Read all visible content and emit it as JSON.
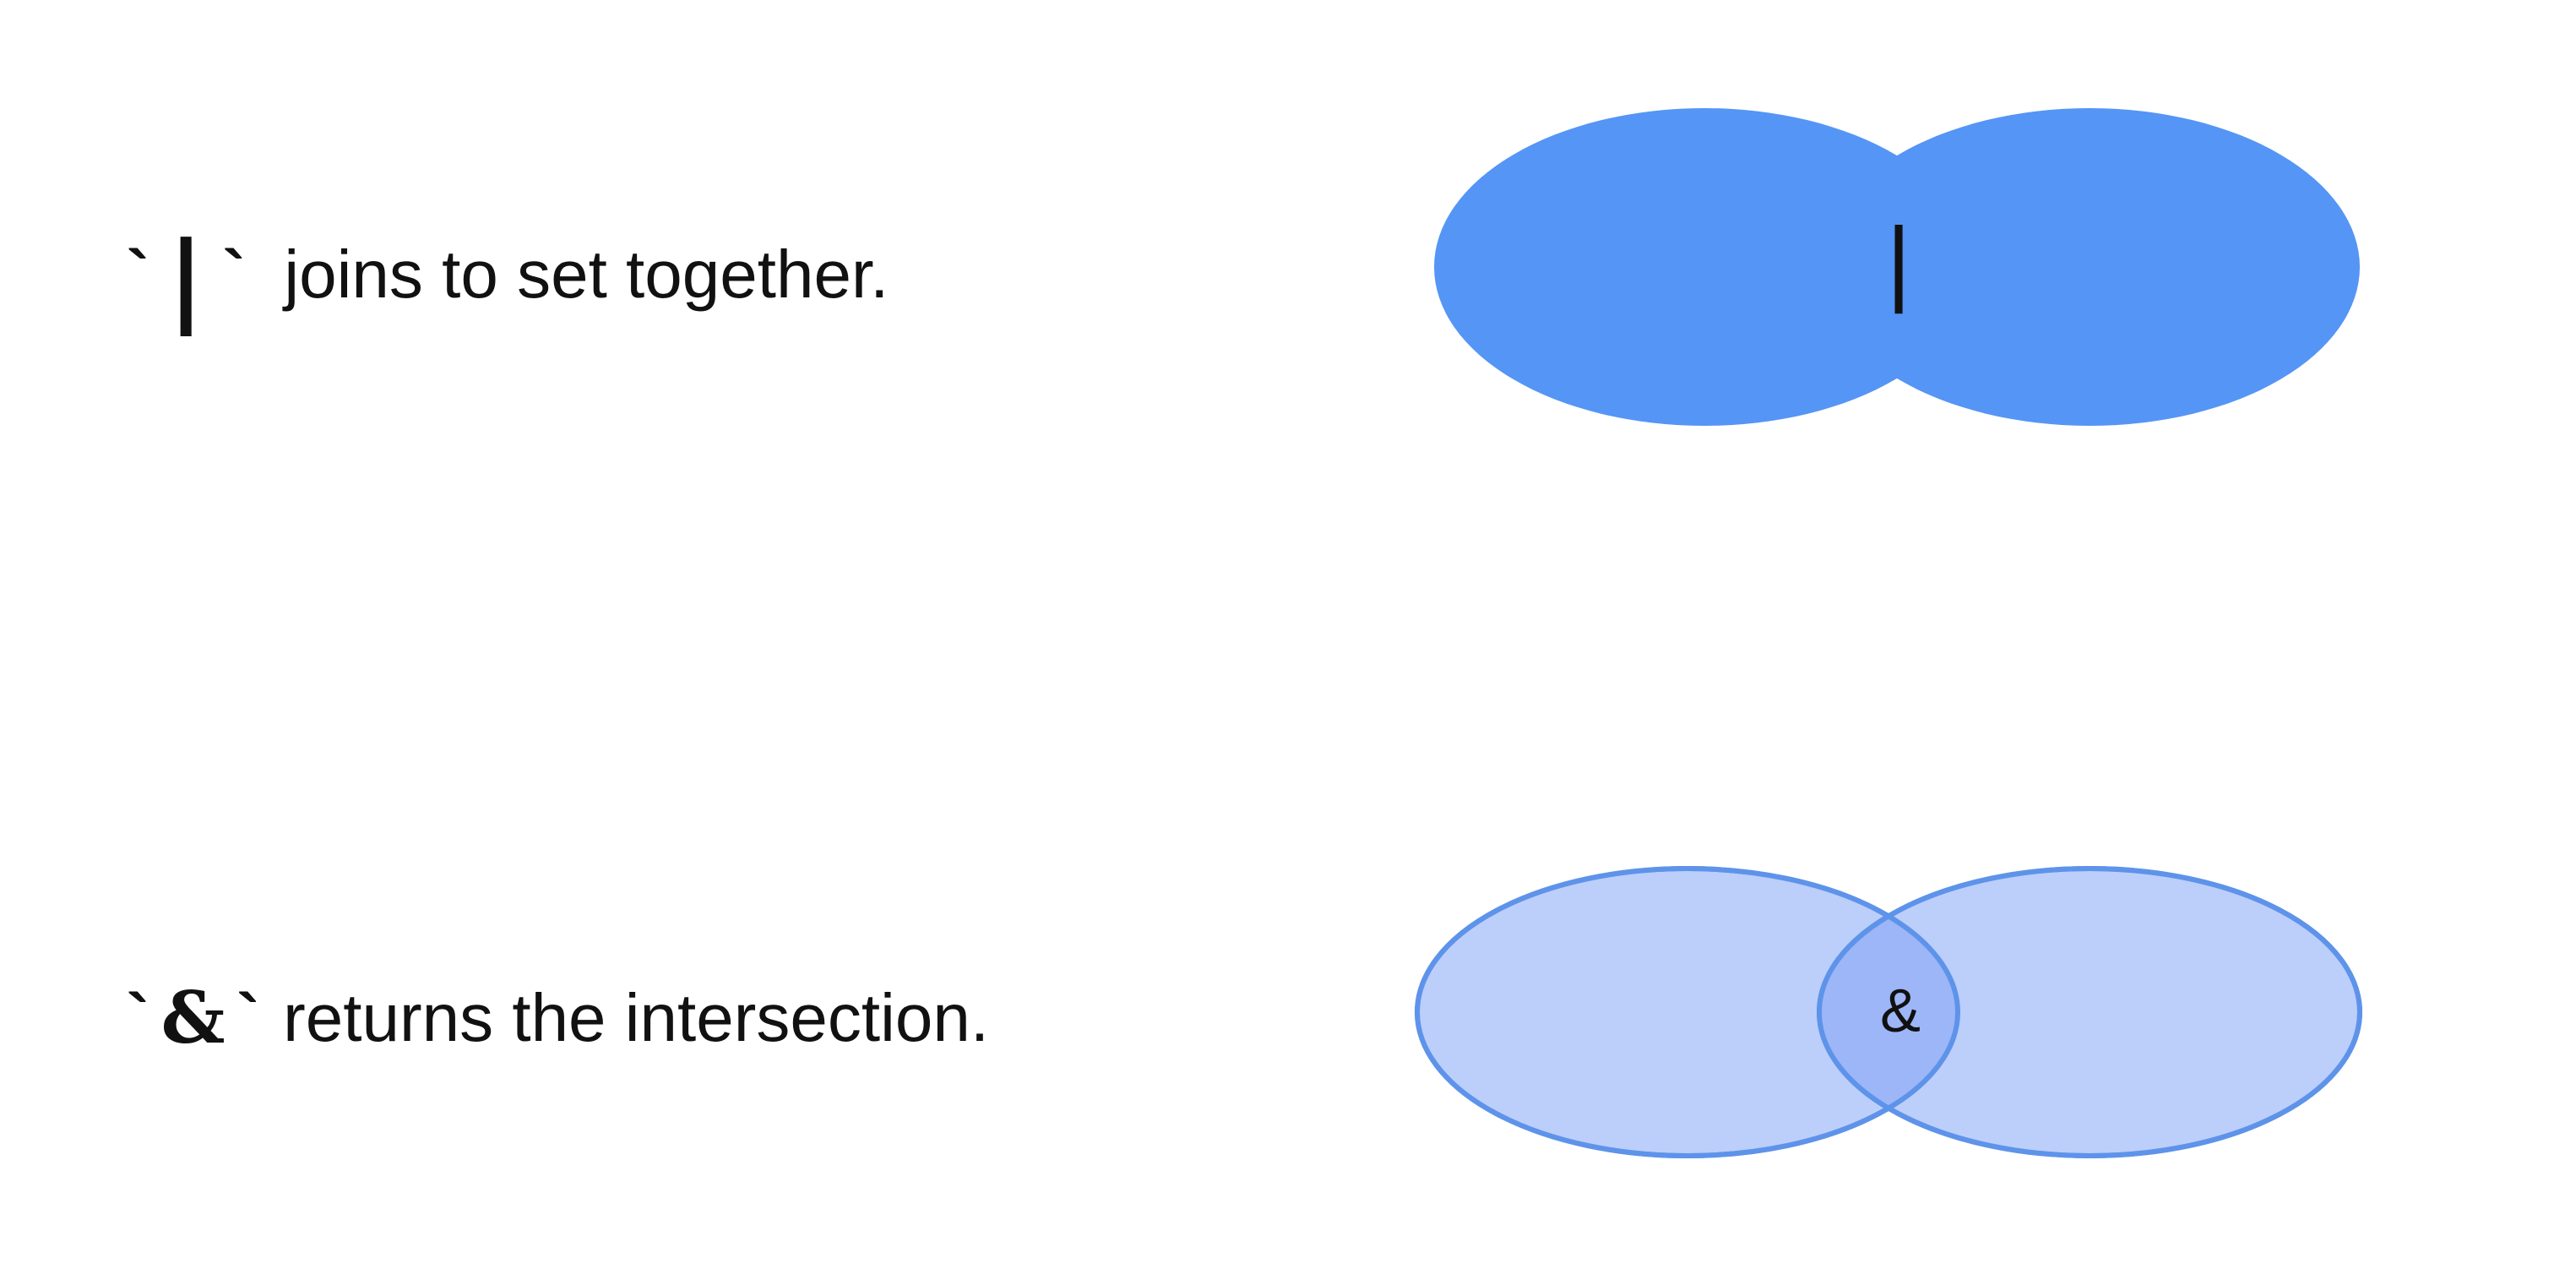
{
  "union": {
    "tick_open": "`",
    "operator": "|",
    "tick_close": "`",
    "description": "joins to set together.",
    "center_label": "|",
    "fill_color": "#5595f5"
  },
  "intersection": {
    "tick_open": "`",
    "operator": "&",
    "tick_close": "`",
    "description": "returns the intersection.",
    "center_label": "&",
    "fill_color": "#bccefa",
    "overlap_color": "#9cb6f7",
    "stroke_color": "#5e93ea"
  }
}
